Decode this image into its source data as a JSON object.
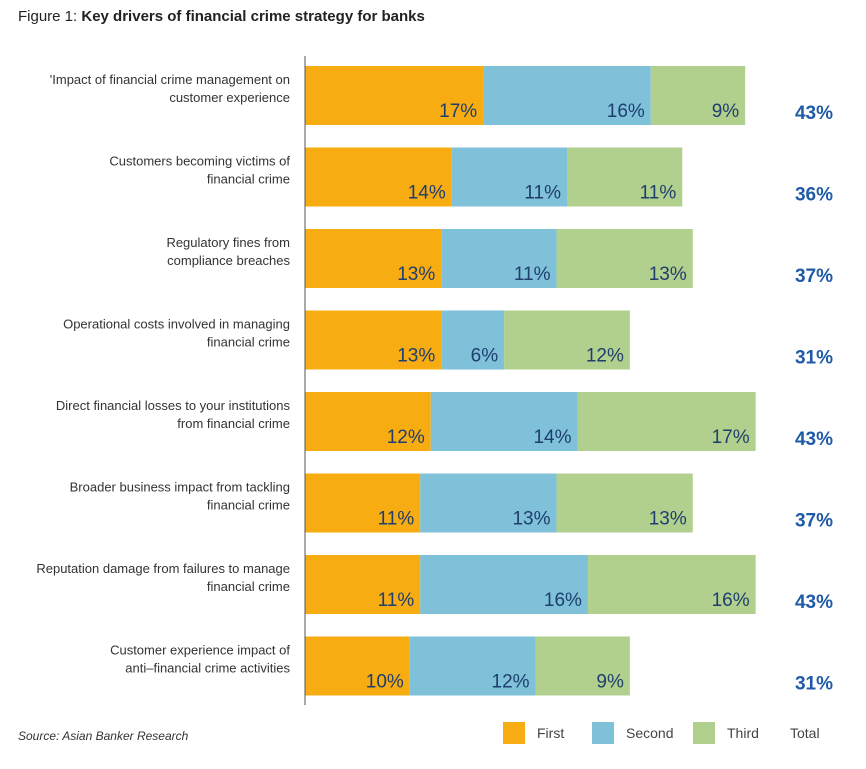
{
  "title_prefix": "Figure 1:",
  "title_main": "Key drivers of financial crime strategy for banks",
  "source": "Source: Asian Banker Research",
  "colors": {
    "first": "#f7ac12",
    "second": "#7ec1d8",
    "third": "#b2d08d",
    "total": "#1f5aa6"
  },
  "legend": {
    "first": "First",
    "second": "Second",
    "third": "Third",
    "total": "Total"
  },
  "chart_data": {
    "type": "bar",
    "orientation": "horizontal",
    "stacked": true,
    "categories": [
      [
        "'Impact of financial crime management on",
        "customer experience"
      ],
      [
        "Customers becoming victims of",
        "financial crime"
      ],
      [
        "Regulatory fines from",
        "compliance breaches"
      ],
      [
        "Operational costs involved in managing",
        "financial crime"
      ],
      [
        "Direct financial losses to your institutions",
        "from financial crime"
      ],
      [
        "Broader business impact from tackling",
        "financial crime"
      ],
      [
        "Reputation damage from failures to manage",
        "financial crime"
      ],
      [
        "Customer experience impact of",
        "anti–financial crime activities"
      ]
    ],
    "series": [
      {
        "name": "First",
        "values": [
          17,
          14,
          13,
          13,
          12,
          11,
          11,
          10
        ]
      },
      {
        "name": "Second",
        "values": [
          16,
          11,
          11,
          6,
          14,
          13,
          16,
          12
        ]
      },
      {
        "name": "Third",
        "values": [
          9,
          11,
          13,
          12,
          17,
          13,
          16,
          9
        ]
      }
    ],
    "totals": [
      43,
      36,
      37,
      31,
      43,
      37,
      43,
      31
    ],
    "value_suffix": "%"
  }
}
